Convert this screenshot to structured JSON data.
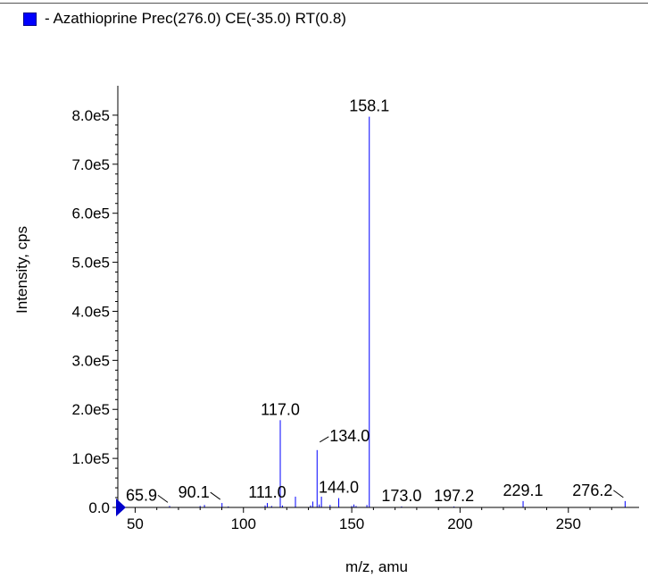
{
  "legend": {
    "label": "- Azathioprine Prec(276.0) CE(-35.0) RT(0.8)",
    "color": "#0000ff"
  },
  "chart_data": {
    "type": "bar",
    "title": "",
    "xlabel": "m/z, amu",
    "ylabel": "Intensity, cps",
    "xlim": [
      42,
      281
    ],
    "ylim": [
      0,
      860000
    ],
    "x_ticks": [
      50,
      100,
      150,
      200,
      250
    ],
    "x_tick_labels": [
      "50",
      "100",
      "150",
      "200",
      "250"
    ],
    "y_ticks": [
      0,
      100000,
      200000,
      300000,
      400000,
      500000,
      600000,
      700000,
      800000
    ],
    "y_tick_labels": [
      "0.0",
      "1.0e5",
      "2.0e5",
      "3.0e5",
      "4.0e5",
      "5.0e5",
      "6.0e5",
      "7.0e5",
      "8.0e5"
    ],
    "grid": false,
    "legend_position": "top-left",
    "series_color": "#0000ff",
    "peaks": [
      {
        "mz": 65.9,
        "intensity": 3000
      },
      {
        "mz": 80.0,
        "intensity": 3000
      },
      {
        "mz": 82.0,
        "intensity": 5000
      },
      {
        "mz": 90.1,
        "intensity": 9000
      },
      {
        "mz": 93.0,
        "intensity": 2000
      },
      {
        "mz": 110.0,
        "intensity": 4000
      },
      {
        "mz": 111.0,
        "intensity": 9000
      },
      {
        "mz": 113.0,
        "intensity": 3000
      },
      {
        "mz": 117.0,
        "intensity": 178000
      },
      {
        "mz": 118.0,
        "intensity": 4000
      },
      {
        "mz": 124.0,
        "intensity": 22000
      },
      {
        "mz": 131.0,
        "intensity": 4000
      },
      {
        "mz": 132.0,
        "intensity": 12000
      },
      {
        "mz": 134.0,
        "intensity": 117000
      },
      {
        "mz": 135.0,
        "intensity": 6000
      },
      {
        "mz": 136.0,
        "intensity": 22000
      },
      {
        "mz": 140.0,
        "intensity": 5000
      },
      {
        "mz": 144.0,
        "intensity": 19000
      },
      {
        "mz": 150.0,
        "intensity": 3000
      },
      {
        "mz": 151.0,
        "intensity": 6000
      },
      {
        "mz": 152.0,
        "intensity": 3000
      },
      {
        "mz": 157.0,
        "intensity": 5000
      },
      {
        "mz": 158.1,
        "intensity": 797000
      },
      {
        "mz": 173.0,
        "intensity": 2000
      },
      {
        "mz": 197.2,
        "intensity": 2000
      },
      {
        "mz": 229.1,
        "intensity": 13000
      },
      {
        "mz": 276.2,
        "intensity": 13000
      }
    ],
    "annotations": [
      {
        "text": "65.9",
        "mz": 65.9,
        "intensity": 3000,
        "leader": "right"
      },
      {
        "text": "90.1",
        "mz": 90.1,
        "intensity": 9000,
        "leader": "right"
      },
      {
        "text": "111.0",
        "mz": 111.0,
        "intensity": 9000,
        "leader": "none"
      },
      {
        "text": "117.0",
        "mz": 117.0,
        "intensity": 178000,
        "leader": "none"
      },
      {
        "text": "134.0",
        "mz": 134.0,
        "intensity": 117000,
        "leader": "left"
      },
      {
        "text": "144.0",
        "mz": 144.0,
        "intensity": 19000,
        "leader": "none"
      },
      {
        "text": "158.1",
        "mz": 158.1,
        "intensity": 797000,
        "leader": "none"
      },
      {
        "text": "173.0",
        "mz": 173.0,
        "intensity": 2000,
        "leader": "none"
      },
      {
        "text": "197.2",
        "mz": 197.2,
        "intensity": 2000,
        "leader": "none"
      },
      {
        "text": "229.1",
        "mz": 229.1,
        "intensity": 13000,
        "leader": "none"
      },
      {
        "text": "276.2",
        "mz": 276.2,
        "intensity": 13000,
        "leader": "right"
      }
    ]
  }
}
